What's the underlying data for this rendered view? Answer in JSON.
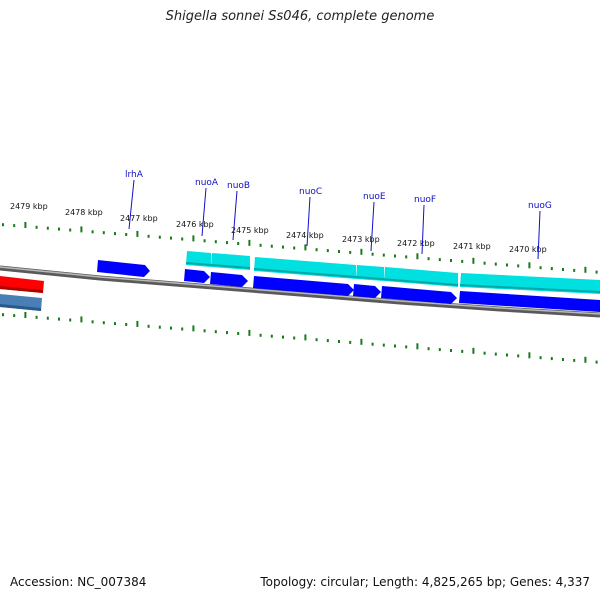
{
  "title": "Shigella sonnei Ss046, complete genome",
  "accession": "Accession: NC_007384",
  "summary": "Topology: circular; Length: 4,825,265 bp; Genes: 4,337",
  "colors": {
    "backbone": "#8a8a8a",
    "ticks": "#1a7a1a",
    "forward_cds": "#00e0e0",
    "reverse_cds": "#0000ff",
    "rrna": "#ff0000",
    "other": "#4a7fb5",
    "gene_label": "#1010c8"
  },
  "scale_ticks": [
    "2479 kbp",
    "2478 kbp",
    "2477 kbp",
    "2476 kbp",
    "2475 kbp",
    "2474 kbp",
    "2473 kbp",
    "2472 kbp",
    "2471 kbp",
    "2470 kbp"
  ],
  "gene_labels": [
    "lrhA",
    "nuoA",
    "nuoB",
    "nuoC",
    "nuoE",
    "nuoF",
    "nuoG"
  ]
}
